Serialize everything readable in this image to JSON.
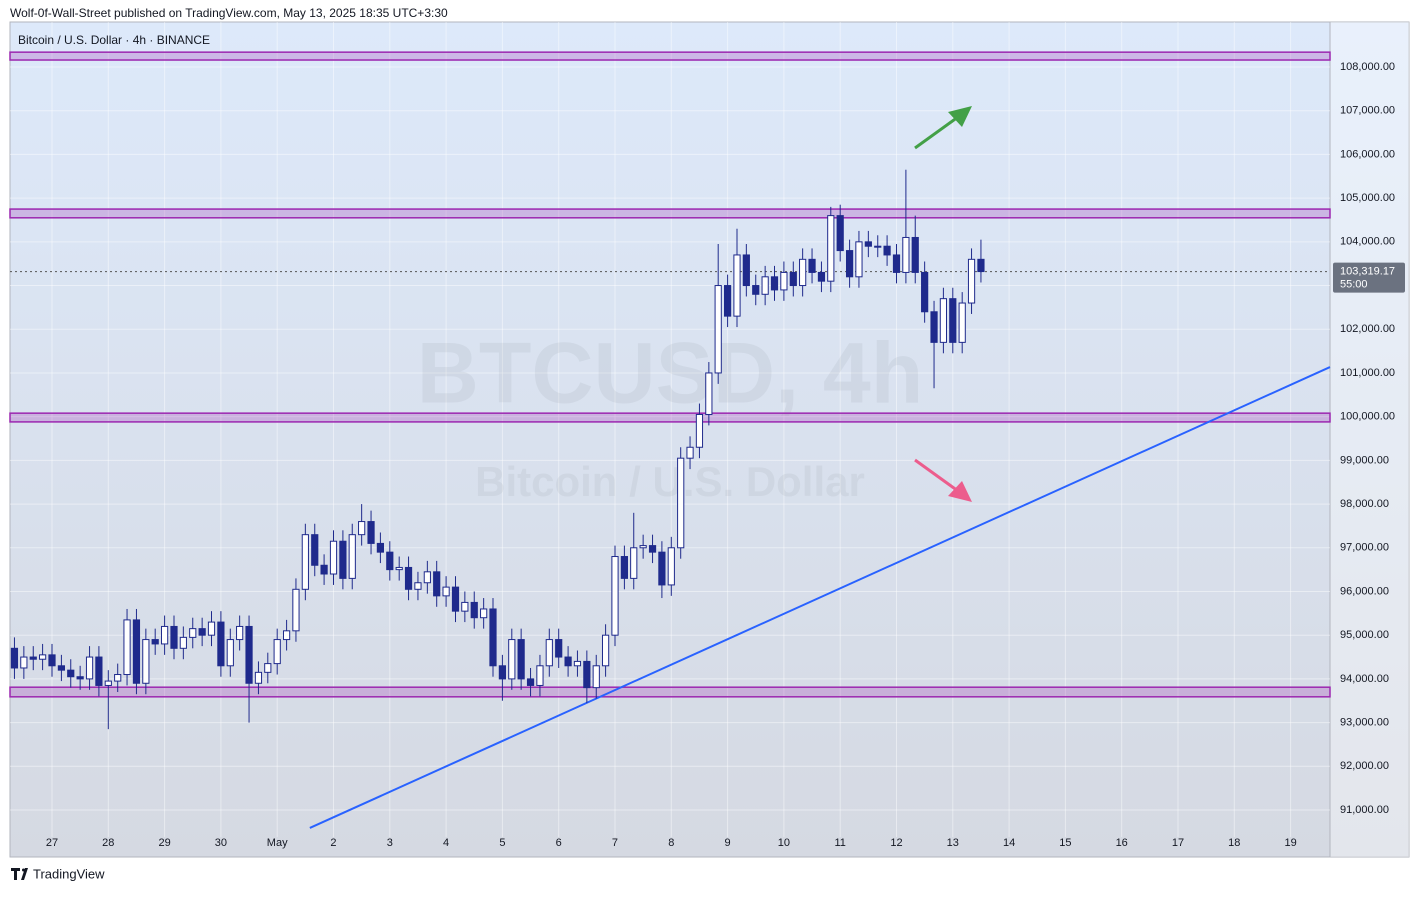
{
  "header": "Wolf-0f-Wall-Street published on TradingView.com, May 13, 2025 18:35 UTC+3:30",
  "footer": "TradingView",
  "chart_data": {
    "type": "candlestick",
    "symbol": "Bitcoin / U.S. Dollar · 4h · BINANCE",
    "watermark": "BTCUSD, 4h",
    "watermark_subtitle": "Bitcoin / U.S. Dollar",
    "x": [
      26.333,
      26.5,
      26.667,
      26.833,
      27,
      27.167,
      27.333,
      27.5,
      27.667,
      27.833,
      28,
      28.167,
      28.333,
      28.5,
      28.667,
      28.833,
      29,
      29.167,
      29.333,
      29.5,
      29.667,
      29.833,
      30,
      30.167,
      30.333,
      30.5,
      30.667,
      30.833,
      31,
      31.167,
      31.333,
      31.5,
      31.667,
      31.833,
      32,
      32.167,
      32.333,
      32.5,
      32.667,
      32.833,
      33,
      33.167,
      33.333,
      33.5,
      33.667,
      33.833,
      34,
      34.167,
      34.333,
      34.5,
      34.667,
      34.833,
      35,
      35.167,
      35.333,
      35.5,
      35.667,
      35.833,
      36,
      36.167,
      36.333,
      36.5,
      36.667,
      36.833,
      37,
      37.167,
      37.333,
      37.5,
      37.667,
      37.833,
      38,
      38.167,
      38.333,
      38.5,
      38.667,
      38.833,
      39,
      39.167,
      39.333,
      39.5,
      39.667,
      39.833,
      40,
      40.167,
      40.333,
      40.5,
      40.667,
      40.833,
      41,
      41.167,
      41.333,
      41.5,
      41.667,
      41.833,
      42,
      42.167,
      42.333,
      42.5,
      42.667,
      42.833,
      43,
      43.167,
      43.333,
      43.5
    ],
    "open": [
      94700,
      94250,
      94500,
      94450,
      94550,
      94300,
      94200,
      94050,
      94000,
      94500,
      93850,
      93950,
      94100,
      95350,
      93900,
      94900,
      94800,
      95200,
      94700,
      94950,
      95150,
      95000,
      95300,
      94300,
      94900,
      95200,
      93900,
      94150,
      94350,
      94900,
      95100,
      96050,
      97300,
      96600,
      96400,
      97150,
      96300,
      97300,
      97600,
      97100,
      96900,
      96500,
      96550,
      96050,
      96200,
      96450,
      95900,
      96100,
      95550,
      95750,
      95400,
      95600,
      94300,
      94000,
      94900,
      94000,
      93850,
      94300,
      94900,
      94500,
      94300,
      94400,
      93800,
      94300,
      95000,
      96800,
      96300,
      97000,
      97050,
      96900,
      96150,
      97000,
      99050,
      99300,
      100050,
      101000,
      103000,
      102300,
      103700,
      103000,
      102800,
      103200,
      102900,
      103300,
      103000,
      103600,
      103300,
      103100,
      104600,
      103800,
      103200,
      104000,
      103900,
      103900,
      103700,
      103300,
      104100,
      103300,
      102400,
      101700,
      102700,
      101700,
      102600,
      103600
    ],
    "high": [
      94950,
      94750,
      94750,
      94800,
      94800,
      94550,
      94450,
      94300,
      94750,
      94750,
      94200,
      94350,
      95600,
      95600,
      95150,
      95150,
      95450,
      95450,
      95200,
      95400,
      95400,
      95550,
      95550,
      95150,
      95450,
      95450,
      94400,
      94600,
      95150,
      95350,
      96300,
      97550,
      97550,
      96850,
      97400,
      97400,
      97550,
      98000,
      97850,
      97350,
      97150,
      96800,
      96800,
      96450,
      96700,
      96700,
      96350,
      96350,
      96000,
      96000,
      95850,
      95850,
      94550,
      95150,
      95150,
      94250,
      94550,
      95150,
      95150,
      94750,
      94650,
      94650,
      94550,
      95250,
      97050,
      97050,
      97800,
      97300,
      97300,
      97150,
      97250,
      99300,
      99550,
      100300,
      101250,
      103950,
      103250,
      104300,
      103950,
      103250,
      103450,
      103450,
      103550,
      103550,
      103850,
      103850,
      103550,
      104800,
      104850,
      104050,
      104250,
      104250,
      104150,
      104150,
      103950,
      105650,
      104600,
      103550,
      102650,
      102950,
      102950,
      102850,
      103850,
      104050
    ],
    "low": [
      94000,
      94000,
      94200,
      94200,
      94050,
      93950,
      93800,
      93750,
      93750,
      93600,
      92850,
      93700,
      93850,
      93650,
      93650,
      94550,
      94550,
      94450,
      94450,
      94700,
      94750,
      94750,
      94050,
      94050,
      94650,
      93000,
      93650,
      93900,
      94100,
      94650,
      94850,
      95800,
      96350,
      96150,
      96150,
      96050,
      96050,
      97050,
      96850,
      96650,
      96250,
      96250,
      95800,
      95800,
      95950,
      95650,
      95650,
      95300,
      95300,
      95150,
      95150,
      94050,
      93500,
      93750,
      93750,
      93600,
      93600,
      94050,
      94250,
      94050,
      94050,
      93450,
      93550,
      94050,
      94750,
      96050,
      96050,
      96750,
      96650,
      95850,
      95900,
      96750,
      98800,
      99050,
      99800,
      100750,
      102050,
      102050,
      102750,
      102550,
      102550,
      102650,
      102650,
      102750,
      102750,
      103050,
      102850,
      102850,
      103550,
      102950,
      102950,
      103650,
      103650,
      103450,
      103050,
      103050,
      103050,
      102150,
      100650,
      101450,
      101450,
      101450,
      102350,
      103070
    ],
    "close": [
      94250,
      94500,
      94450,
      94550,
      94300,
      94200,
      94050,
      94000,
      94500,
      93850,
      93950,
      94100,
      95350,
      93900,
      94900,
      94800,
      95200,
      94700,
      94950,
      95150,
      95000,
      95300,
      94300,
      94900,
      95200,
      93900,
      94150,
      94350,
      94900,
      95100,
      96050,
      97300,
      96600,
      96400,
      97150,
      96300,
      97300,
      97600,
      97100,
      96900,
      96500,
      96550,
      96050,
      96200,
      96450,
      95900,
      96100,
      95550,
      95750,
      95400,
      95600,
      94300,
      94000,
      94900,
      94000,
      93850,
      94300,
      94900,
      94500,
      94300,
      94400,
      93800,
      94300,
      95000,
      96800,
      96300,
      97000,
      97050,
      96900,
      96150,
      97000,
      99050,
      99300,
      100050,
      101000,
      103000,
      102300,
      103700,
      103000,
      102800,
      103200,
      102900,
      103300,
      103000,
      103600,
      103300,
      103100,
      104600,
      103800,
      103200,
      104000,
      103900,
      103900,
      103700,
      103300,
      104100,
      103300,
      102400,
      101700,
      102700,
      101700,
      102600,
      103600,
      103320
    ],
    "up_color": "#ffffff",
    "down_color": "#1f2a8c",
    "zones": [
      [
        108160,
        108340
      ],
      [
        104550,
        104750
      ],
      [
        99880,
        100080
      ],
      [
        93590,
        93810
      ]
    ],
    "zone_color": "#9c27b0",
    "trendline": {
      "x": [
        31.58,
        49.7
      ],
      "y": [
        90590,
        101135
      ],
      "color": "#2962ff"
    },
    "last_price": {
      "value": 103319.17,
      "label": "103,319.17"
    },
    "countdown": "55:00",
    "xlim": [
      26.254,
      49.7
    ],
    "ylim": [
      89925,
      109030
    ],
    "xticks": [
      27,
      28,
      29,
      30,
      {
        "value": 31,
        "label": "May"
      },
      {
        "value": 32,
        "label": "2"
      },
      {
        "value": 33,
        "label": "3"
      },
      {
        "value": 34,
        "label": "4"
      },
      {
        "value": 35,
        "label": "5"
      },
      {
        "value": 36,
        "label": "6"
      },
      {
        "value": 37,
        "label": "7"
      },
      {
        "value": 38,
        "label": "8"
      },
      {
        "value": 39,
        "label": "9"
      },
      {
        "value": 40,
        "label": "10"
      },
      {
        "value": 41,
        "label": "11"
      },
      {
        "value": 42,
        "label": "12"
      },
      {
        "value": 43,
        "label": "13"
      },
      {
        "value": 44,
        "label": "14"
      },
      {
        "value": 45,
        "label": "15"
      },
      {
        "value": 46,
        "label": "16"
      },
      {
        "value": 47,
        "label": "17"
      },
      {
        "value": 48,
        "label": "18"
      },
      {
        "value": 49,
        "label": "19"
      }
    ],
    "yticks": [
      {
        "value": 91000,
        "label": "91,000.00"
      },
      {
        "value": 92000,
        "label": "92,000.00"
      },
      {
        "value": 93000,
        "label": "93,000.00"
      },
      {
        "value": 94000,
        "label": "94,000.00"
      },
      {
        "value": 95000,
        "label": "95,000.00"
      },
      {
        "value": 96000,
        "label": "96,000.00"
      },
      {
        "value": 97000,
        "label": "97,000.00"
      },
      {
        "value": 98000,
        "label": "98,000.00"
      },
      {
        "value": 99000,
        "label": "99,000.00"
      },
      {
        "value": 100000,
        "label": "100,000.00"
      },
      {
        "value": 101000,
        "label": "101,000.00"
      },
      {
        "value": 102000,
        "label": "102,000.00"
      },
      {
        "value": 103000,
        "label": "103,000.00"
      },
      {
        "value": 104000,
        "label": "104,000.00"
      },
      {
        "value": 105000,
        "label": "105,000.00"
      },
      {
        "value": 106000,
        "label": "106,000.00"
      },
      {
        "value": 107000,
        "label": "107,000.00"
      },
      {
        "value": 108000,
        "label": "108,000.00"
      }
    ],
    "grid": true
  }
}
